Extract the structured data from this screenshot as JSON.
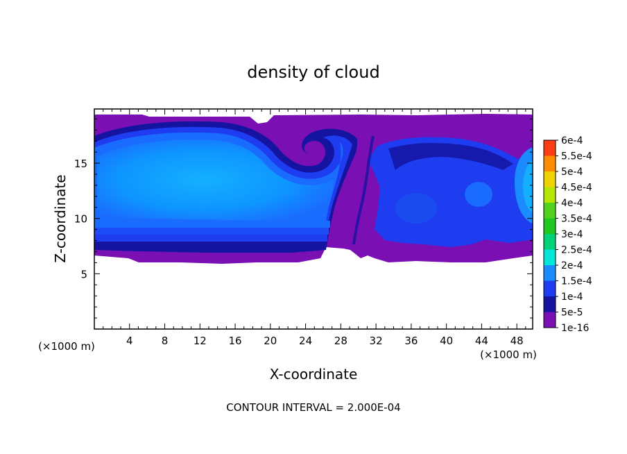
{
  "chart_data": {
    "type": "heatmap",
    "title": "density of cloud",
    "xlabel": "X-coordinate",
    "ylabel": "Z-coordinate",
    "x_unit_left": "(×1000 m)",
    "x_unit_right": "(×1000 m)",
    "xlim": [
      0,
      49.8
    ],
    "ylim": [
      0,
      19.9
    ],
    "x_ticks": [
      4,
      8,
      12,
      16,
      20,
      24,
      28,
      32,
      36,
      40,
      44,
      48
    ],
    "y_ticks": [
      5,
      10,
      15
    ],
    "colorbar": {
      "levels": [
        "1e-16",
        "5e-5",
        "1e-4",
        "1.5e-4",
        "2e-4",
        "2.5e-4",
        "3e-4",
        "3.5e-4",
        "4e-4",
        "4.5e-4",
        "5e-4",
        "5.5e-4",
        "6e-4"
      ],
      "colors": [
        "#7a0fb4",
        "#1414a0",
        "#1e3cf0",
        "#1a8cff",
        "#00e6d8",
        "#00d278",
        "#1ec81e",
        "#50d21e",
        "#b4e600",
        "#f0d200",
        "#ff8c00",
        "#ff3c14",
        "#ff8a8a"
      ]
    },
    "note": "CONTOUR INTERVAL = 2.000E-04"
  }
}
